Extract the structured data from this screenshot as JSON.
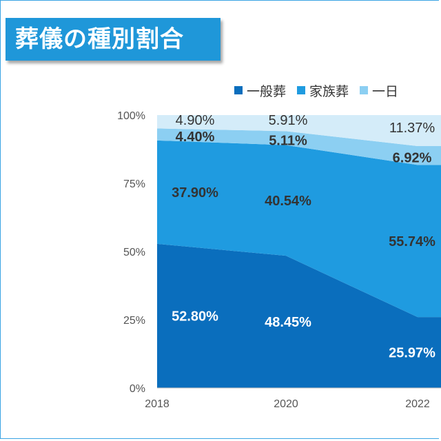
{
  "header": {
    "title": "葬儀の種別割合"
  },
  "chart_data": {
    "type": "area",
    "stacked": true,
    "title": "葬儀の種別割合",
    "x": [
      2018,
      2020,
      2022
    ],
    "y_ticks": [
      "0%",
      "25%",
      "50%",
      "75%",
      "100%"
    ],
    "ylim": [
      0,
      100
    ],
    "legend_position": "top",
    "series": [
      {
        "name": "一般葬",
        "values": [
          52.8,
          48.45,
          25.97
        ],
        "labels": [
          "52.80%",
          "48.45%",
          "25.97%"
        ],
        "color": "#0a6ebd",
        "label_color": "#ffffff",
        "label_bold": true
      },
      {
        "name": "家族葬",
        "values": [
          37.9,
          40.54,
          55.74
        ],
        "labels": [
          "37.90%",
          "40.54%",
          "55.74%"
        ],
        "color": "#1f9be0",
        "label_color": "#333333",
        "label_bold": true
      },
      {
        "name": "一日",
        "values": [
          4.4,
          5.11,
          6.92
        ],
        "labels": [
          "4.40%",
          "5.11%",
          "6.92%"
        ],
        "color": "#8ccff2",
        "label_color": "#333333",
        "label_bold": true
      },
      {
        "name": "",
        "values": [
          4.9,
          5.91,
          11.37
        ],
        "labels": [
          "4.90%",
          "5.91%",
          "11.37%"
        ],
        "color": "#d4ecf9",
        "label_color": "#333333",
        "label_bold": false
      }
    ]
  }
}
